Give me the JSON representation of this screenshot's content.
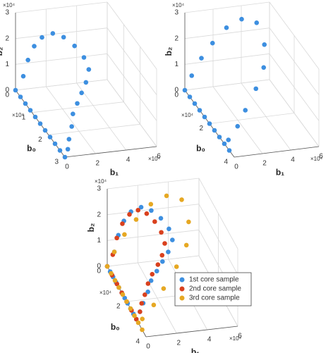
{
  "chart_data": [
    {
      "type": "scatter3d",
      "x_label": "b₀",
      "y_label": "b₁",
      "z_label": "b₂",
      "x_exponent": "×10⁴",
      "y_exponent": "×10⁴",
      "z_exponent": "×10⁴",
      "xlim": [
        0,
        3
      ],
      "xticks": [
        0,
        1,
        2,
        3
      ],
      "ylim": [
        0,
        6
      ],
      "yticks": [
        0,
        2,
        4,
        6
      ],
      "zlim": [
        0,
        3
      ],
      "zticks": [
        0,
        1,
        2,
        3
      ],
      "grid": true,
      "series": [
        {
          "color": "#3d8fe0",
          "x": [
            0,
            0.3,
            0.6,
            0.9,
            1.2,
            1.5,
            1.8,
            2.1,
            2.4,
            2.7,
            3.0,
            0.1,
            0.2,
            0.3,
            0.4,
            0.5,
            0.6,
            0.8,
            1.0,
            1.2,
            1.4,
            1.6,
            1.8,
            2.0,
            2.3,
            2.6,
            2.9
          ],
          "y": [
            0,
            0,
            0,
            0,
            0,
            0,
            0,
            0,
            0,
            0,
            0,
            0.4,
            0.6,
            0.9,
            1.3,
            1.9,
            2.5,
            3.0,
            3.4,
            3.5,
            3.1,
            2.6,
            2.1,
            1.6,
            1.2,
            0.7,
            0.3
          ],
          "z": [
            0,
            0,
            0,
            0,
            0,
            0,
            0,
            0,
            0,
            0,
            0,
            0.6,
            1.3,
            1.9,
            2.3,
            2.5,
            2.4,
            2.2,
            1.9,
            1.6,
            1.3,
            1.1,
            0.9,
            0.7,
            0.5,
            0.3,
            0.2
          ]
        }
      ]
    },
    {
      "type": "scatter3d",
      "x_label": "b₀",
      "y_label": "b₁",
      "z_label": "b₂",
      "x_exponent": "×10⁴",
      "y_exponent": "×10⁴",
      "z_exponent": "×10⁴",
      "xlim": [
        0,
        4
      ],
      "xticks": [
        0,
        2,
        4
      ],
      "ylim": [
        0,
        6
      ],
      "yticks": [
        0,
        2,
        4,
        6
      ],
      "zlim": [
        0,
        3
      ],
      "zticks": [
        0,
        1,
        2,
        3
      ],
      "grid": true,
      "series": [
        {
          "color": "#3d8fe0",
          "x": [
            0,
            0.4,
            0.8,
            1.2,
            1.6,
            2.0,
            2.4,
            2.8,
            3.2,
            3.6,
            0.1,
            0.2,
            0.3,
            0.4,
            0.6,
            0.9,
            1.3,
            1.7,
            2.1,
            2.5,
            2.9,
            3.3
          ],
          "y": [
            0,
            0,
            0,
            0,
            0,
            0,
            0,
            0,
            0,
            0,
            0.4,
            1.0,
            1.7,
            2.6,
            3.5,
            4.3,
            4.5,
            4.1,
            3.2,
            2.1,
            1.2,
            0.2
          ],
          "z": [
            0,
            0,
            0,
            0,
            0,
            0,
            0,
            0,
            0,
            0,
            0.6,
            1.3,
            1.9,
            2.5,
            2.9,
            2.9,
            2.3,
            1.7,
            1.2,
            0.7,
            0.4,
            0.2
          ]
        }
      ]
    },
    {
      "type": "scatter3d",
      "x_label": "b₀",
      "y_label": "b₁",
      "z_label": "b₂",
      "x_exponent": "×10⁴",
      "y_exponent": "×10⁴",
      "z_exponent": "×10⁴",
      "xlim": [
        0,
        4
      ],
      "xticks": [
        0,
        2,
        4
      ],
      "ylim": [
        0,
        6
      ],
      "yticks": [
        0,
        2,
        4,
        6
      ],
      "zlim": [
        0,
        3
      ],
      "zticks": [
        0,
        1,
        2,
        3
      ],
      "grid": true,
      "legend": "lower right",
      "series": [
        {
          "name": "1st core sample",
          "color": "#3d8fe0",
          "x": [
            0,
            0.3,
            0.6,
            0.9,
            1.2,
            1.5,
            1.8,
            2.1,
            2.4,
            2.7,
            3.0,
            0.1,
            0.2,
            0.3,
            0.4,
            0.5,
            0.6,
            0.8,
            1.0,
            1.2,
            1.4,
            1.6,
            1.8,
            2.0,
            2.3,
            2.6,
            2.9
          ],
          "y": [
            0,
            0,
            0,
            0,
            0,
            0,
            0,
            0,
            0,
            0,
            0,
            0.4,
            0.6,
            0.9,
            1.3,
            1.9,
            2.5,
            3.0,
            3.4,
            3.5,
            3.1,
            2.6,
            2.1,
            1.6,
            1.2,
            0.7,
            0.3
          ],
          "z": [
            0,
            0,
            0,
            0,
            0,
            0,
            0,
            0,
            0,
            0,
            0,
            0.6,
            1.3,
            1.9,
            2.3,
            2.5,
            2.4,
            2.2,
            1.9,
            1.6,
            1.3,
            1.1,
            0.9,
            0.7,
            0.5,
            0.3,
            0.2
          ]
        },
        {
          "name": "2nd core sample",
          "color": "#d9411e",
          "x": [
            0,
            0.5,
            1.0,
            1.5,
            2.0,
            2.5,
            3.0,
            0.1,
            0.2,
            0.3,
            0.4,
            0.5,
            0.6,
            0.8,
            1.0,
            1.2,
            1.4,
            1.6,
            1.8,
            2.0,
            2.3,
            2.6,
            2.9
          ],
          "y": [
            0,
            0,
            0,
            0,
            0,
            0,
            0,
            0.3,
            0.5,
            0.8,
            1.2,
            1.7,
            2.2,
            2.6,
            2.9,
            3.0,
            2.7,
            2.3,
            1.8,
            1.4,
            1.0,
            0.6,
            0.3
          ],
          "z": [
            0,
            0,
            0,
            0,
            0,
            0,
            0,
            0.5,
            1.2,
            1.8,
            2.2,
            2.4,
            2.3,
            2.1,
            1.8,
            1.5,
            1.2,
            1.0,
            0.8,
            0.6,
            0.4,
            0.3,
            0.2
          ]
        },
        {
          "name": "3rd core sample",
          "color": "#e6a823",
          "x": [
            0,
            0.4,
            0.8,
            1.2,
            1.6,
            2.0,
            2.4,
            2.8,
            3.2,
            3.6,
            0.1,
            0.2,
            0.3,
            0.4,
            0.6,
            0.9,
            1.3,
            1.7,
            2.1,
            2.5,
            2.9,
            3.3
          ],
          "y": [
            0,
            0,
            0,
            0,
            0,
            0,
            0,
            0,
            0,
            0,
            0.4,
            1.0,
            1.7,
            2.6,
            3.5,
            4.3,
            4.5,
            4.1,
            3.2,
            2.1,
            1.2,
            0.2
          ],
          "z": [
            0,
            0,
            0,
            0,
            0,
            0,
            0,
            0,
            0,
            0,
            0.6,
            1.3,
            1.9,
            2.5,
            2.9,
            2.9,
            2.3,
            1.7,
            1.2,
            0.7,
            0.4,
            0.2
          ]
        }
      ]
    }
  ]
}
